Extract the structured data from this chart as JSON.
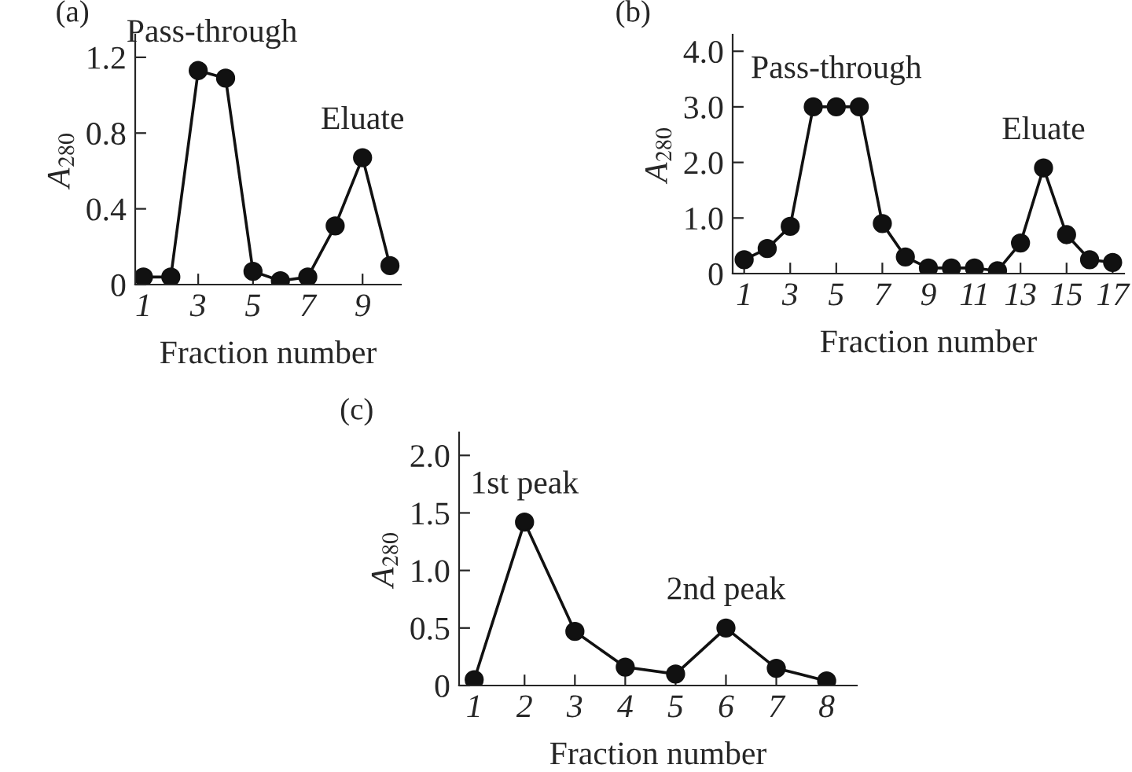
{
  "chart_data": [
    {
      "type": "line",
      "title": "(a)",
      "xlabel": "Fraction number",
      "ylabel": "A$_{280}$",
      "marker": "circle",
      "color": "#111111",
      "x": [
        1,
        2,
        3,
        4,
        5,
        6,
        7,
        8,
        9,
        10
      ],
      "values": [
        0.04,
        0.04,
        1.13,
        1.09,
        0.07,
        0.02,
        0.04,
        0.31,
        0.67,
        0.1
      ],
      "xlim": [
        0.7,
        10.4
      ],
      "xticks": [
        1,
        3,
        5,
        7,
        9
      ],
      "ylim": [
        0,
        1.32
      ],
      "yticks": [
        0,
        0.4,
        0.8,
        1.2
      ],
      "annotations": [
        {
          "text": "Pass-through",
          "x": 3.5,
          "y": 1.13
        },
        {
          "text": "Eluate",
          "x": 9,
          "y": 0.67
        }
      ]
    },
    {
      "type": "line",
      "title": "(b)",
      "xlabel": "Fraction number",
      "ylabel": "A$_{280}$",
      "marker": "circle",
      "color": "#111111",
      "x": [
        1,
        2,
        3,
        4,
        5,
        6,
        7,
        8,
        9,
        10,
        11,
        12,
        13,
        14,
        15,
        16,
        17
      ],
      "values": [
        0.25,
        0.45,
        0.85,
        3.0,
        3.0,
        3.0,
        0.9,
        0.3,
        0.1,
        0.1,
        0.1,
        0.05,
        0.55,
        1.9,
        0.7,
        0.25,
        0.2
      ],
      "xlim": [
        0.5,
        17.5
      ],
      "xticks": [
        1,
        3,
        5,
        7,
        9,
        11,
        13,
        15,
        17
      ],
      "ylim": [
        0,
        4.3
      ],
      "yticks": [
        0,
        {
          "value": 1,
          "label": "1.0"
        },
        {
          "value": 2,
          "label": "2.0"
        },
        {
          "value": 3,
          "label": "3.0"
        },
        {
          "value": 4,
          "label": "4.0"
        }
      ],
      "annotations": [
        {
          "text": "Pass-through",
          "x": 5,
          "y": 3.0
        },
        {
          "text": "Eluate",
          "x": 14,
          "y": 1.9
        }
      ]
    },
    {
      "type": "line",
      "title": "(c)",
      "xlabel": "Fraction number",
      "ylabel": "A$_{280}$",
      "marker": "circle",
      "color": "#111111",
      "x": [
        1,
        2,
        3,
        4,
        5,
        6,
        7,
        8
      ],
      "values": [
        0.05,
        1.42,
        0.47,
        0.16,
        0.1,
        0.5,
        0.15,
        0.04
      ],
      "xlim": [
        0.7,
        8.6
      ],
      "xticks": [
        1,
        2,
        3,
        4,
        5,
        6,
        7,
        8
      ],
      "ylim": [
        0,
        2.2
      ],
      "yticks": [
        0,
        0.5,
        {
          "value": 1,
          "label": "1.0"
        },
        1.5,
        {
          "value": 2,
          "label": "2.0"
        }
      ],
      "annotations": [
        {
          "text": "1st peak",
          "x": 2,
          "y": 1.42
        },
        {
          "text": "2nd peak",
          "x": 6,
          "y": 0.5
        }
      ]
    }
  ]
}
